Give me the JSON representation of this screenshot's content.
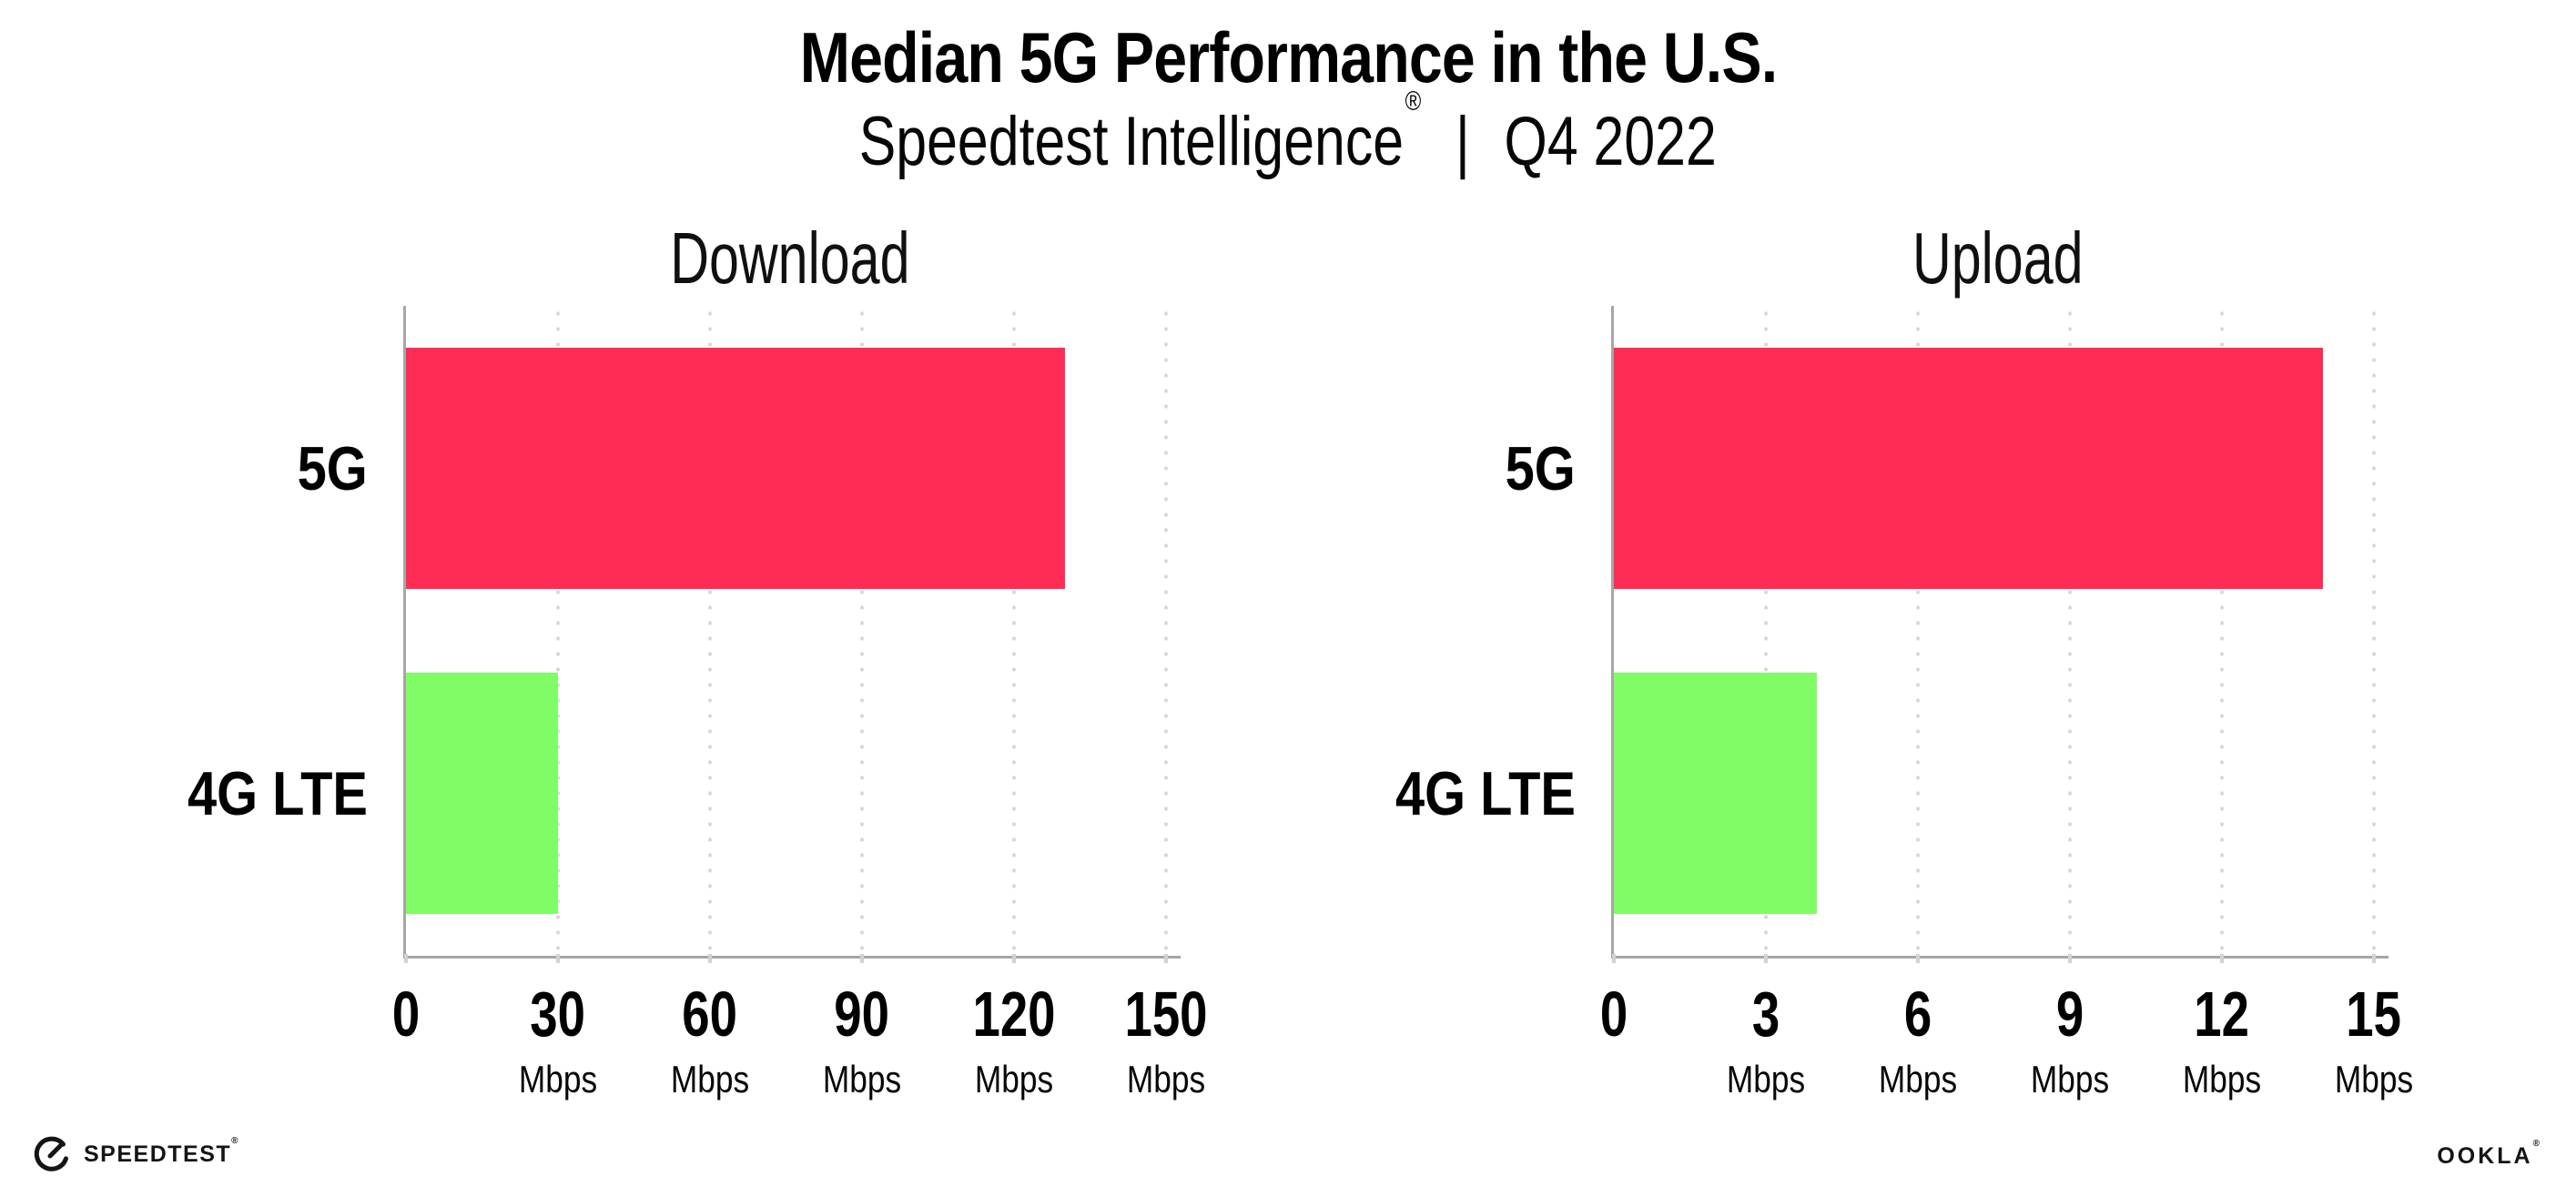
{
  "header": {
    "title": "Median 5G Performance in the U.S.",
    "subtitle_product": "Speedtest Intelligence",
    "subtitle_reg": "®",
    "subtitle_separator": "|",
    "subtitle_period": "Q4 2022"
  },
  "chart_data": [
    {
      "type": "bar",
      "orientation": "horizontal",
      "title": "Download",
      "categories": [
        "5G",
        "4G LTE"
      ],
      "values": [
        130,
        30
      ],
      "unit": "Mbps",
      "xticks": [
        0,
        30,
        60,
        90,
        120,
        150
      ],
      "xlim": [
        0,
        150
      ],
      "xlabel": "",
      "ylabel": "",
      "grid": "dotted-vertical",
      "legend": "none",
      "bar_colors": [
        "#FF2D55",
        "#7FFC66"
      ]
    },
    {
      "type": "bar",
      "orientation": "horizontal",
      "title": "Upload",
      "categories": [
        "5G",
        "4G LTE"
      ],
      "values": [
        14,
        4
      ],
      "unit": "Mbps",
      "xticks": [
        0,
        3,
        6,
        9,
        12,
        15
      ],
      "xlim": [
        0,
        15
      ],
      "xlabel": "",
      "ylabel": "",
      "grid": "dotted-vertical",
      "legend": "none",
      "bar_colors": [
        "#FF2D55",
        "#7FFC66"
      ]
    }
  ],
  "colors": {
    "bar_5g": "#FF2D55",
    "bar_4g_lte": "#7FFC66",
    "axis": "#a6a6a6",
    "gridline_dots": "#d9d9d9",
    "text": "#000000"
  },
  "footer": {
    "speedtest_label": "SPEEDTEST",
    "speedtest_reg": "®",
    "gauge_icon": "speedtest-gauge-icon",
    "ookla_label": "OOKLA",
    "ookla_reg": "®"
  }
}
